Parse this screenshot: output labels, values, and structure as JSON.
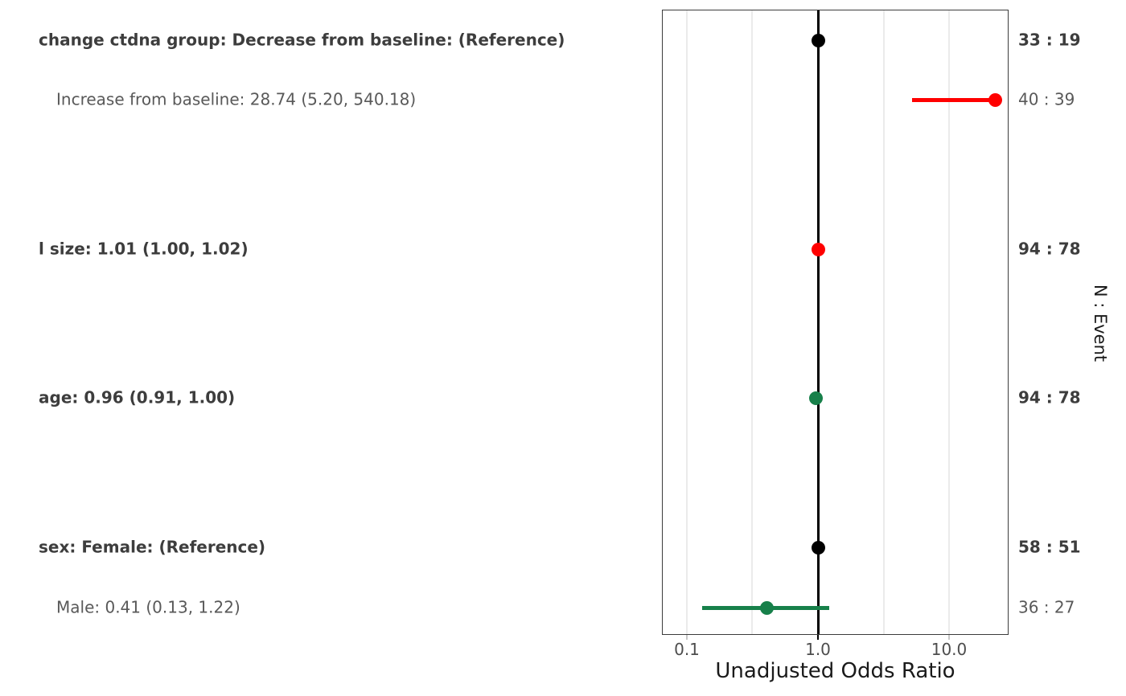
{
  "chart_data": {
    "type": "forest",
    "xlabel": "Unadjusted Odds Ratio",
    "right_axis_label": "N : Event",
    "x_scale": "log10",
    "x_axis": {
      "ticks": [
        {
          "value": 0.1,
          "label": "0.1"
        },
        {
          "value": 1.0,
          "label": "1.0"
        },
        {
          "value": 10.0,
          "label": "10.0"
        }
      ],
      "minor_gridlines": [
        0.3162,
        3.1623
      ],
      "reference_line": 1.0
    },
    "rows": [
      {
        "label": "change ctdna group: Decrease from baseline: (Reference)",
        "bold": true,
        "indent": false,
        "estimate": 1.0,
        "ci_low": null,
        "ci_high": null,
        "n_event": "33 : 19",
        "color": "#000000"
      },
      {
        "label": "Increase from baseline: 28.74 (5.20, 540.18)",
        "bold": false,
        "indent": true,
        "estimate": 28.74,
        "ci_low": 5.2,
        "ci_high": 540.18,
        "n_event": "40 : 39",
        "color": "#ff0000"
      },
      {
        "label": "l size: 1.01 (1.00, 1.02)",
        "bold": true,
        "indent": false,
        "estimate": 1.01,
        "ci_low": 1.0,
        "ci_high": 1.02,
        "n_event": "94 : 78",
        "color": "#ff0000"
      },
      {
        "label": "age: 0.96 (0.91, 1.00)",
        "bold": true,
        "indent": false,
        "estimate": 0.96,
        "ci_low": 0.91,
        "ci_high": 1.0,
        "n_event": "94 : 78",
        "color": "#17804a"
      },
      {
        "label": "sex: Female: (Reference)",
        "bold": true,
        "indent": false,
        "estimate": 1.0,
        "ci_low": null,
        "ci_high": null,
        "n_event": "58 : 51",
        "color": "#000000"
      },
      {
        "label": "Male: 0.41 (0.13, 1.22)",
        "bold": false,
        "indent": true,
        "estimate": 0.41,
        "ci_low": 0.13,
        "ci_high": 1.22,
        "n_event": "36 : 27",
        "color": "#17804a"
      }
    ]
  },
  "colors": {
    "reference_marker": "#000000",
    "risk_marker": "#ff0000",
    "protective_marker": "#17804a",
    "panel_border": "#3c3c3c",
    "gridline": "#ebebeb",
    "bold_text": "#3d3d3d",
    "muted_text": "#595959",
    "tick_text": "#4d4d4d"
  }
}
